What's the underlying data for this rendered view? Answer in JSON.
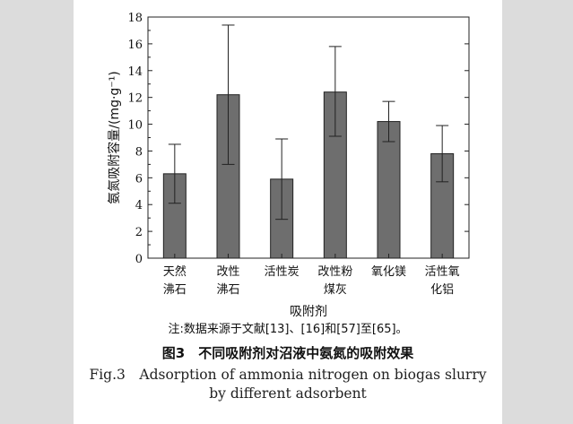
{
  "chart_data": {
    "type": "bar",
    "categories": [
      [
        "天然",
        "沸石"
      ],
      [
        "改性",
        "沸石"
      ],
      [
        "活性炭"
      ],
      [
        "改性粉",
        "煤灰"
      ],
      [
        "氧化镁"
      ],
      [
        "活性氧",
        "化铝"
      ]
    ],
    "values": [
      6.3,
      12.2,
      5.9,
      12.4,
      10.2,
      7.8
    ],
    "error_low": [
      4.1,
      7.0,
      2.9,
      9.1,
      8.7,
      5.7
    ],
    "error_high": [
      8.5,
      17.4,
      8.9,
      15.8,
      11.7,
      9.9
    ],
    "ylim": [
      0,
      18
    ],
    "yticks": [
      0,
      2,
      4,
      6,
      8,
      10,
      12,
      14,
      16,
      18
    ],
    "xlabel": "吸附剂",
    "ylabel": "氨氮吸附容量/(mg·g⁻¹)",
    "bar_color": "#6e6e6e",
    "grid": false
  },
  "note": "注:数据来源于文献[13]、[16]和[57]至[65]。",
  "caption_cn": "图3　不同吸附剂对沼液中氨氮的吸附效果",
  "caption_en_line1": "Fig.3　Adsorption of ammonia nitrogen on biogas slurry",
  "caption_en_line2": "by different adsorbent"
}
